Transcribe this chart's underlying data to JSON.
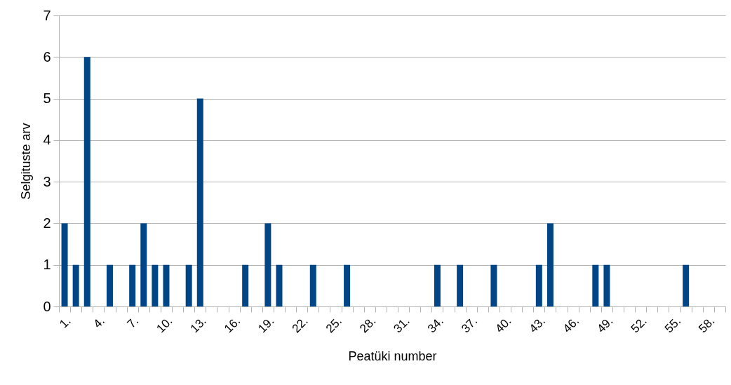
{
  "chart_data": {
    "type": "bar",
    "xlabel": "Peatüki number",
    "ylabel": "Selgituste arv",
    "categories": [
      "1.",
      null,
      null,
      "4.",
      null,
      null,
      "7.",
      null,
      null,
      "10.",
      null,
      null,
      "13.",
      null,
      null,
      "16.",
      null,
      null,
      "19.",
      null,
      null,
      "22.",
      null,
      null,
      "25.",
      null,
      null,
      "28.",
      null,
      null,
      "31.",
      null,
      null,
      "34.",
      null,
      null,
      "37.",
      null,
      null,
      "40.",
      null,
      null,
      "43.",
      null,
      null,
      "46.",
      null,
      null,
      "49.",
      null,
      null,
      "52.",
      null,
      null,
      "55.",
      null,
      null,
      "58.",
      null
    ],
    "values": [
      2,
      1,
      6,
      0,
      1,
      0,
      1,
      2,
      1,
      1,
      0,
      1,
      5,
      0,
      0,
      0,
      1,
      0,
      2,
      1,
      0,
      0,
      1,
      0,
      0,
      1,
      0,
      0,
      0,
      0,
      0,
      0,
      0,
      1,
      0,
      1,
      0,
      0,
      1,
      0,
      0,
      0,
      1,
      2,
      0,
      0,
      0,
      1,
      1,
      0,
      0,
      0,
      0,
      0,
      0,
      1,
      0,
      0,
      0
    ],
    "color": "#004586",
    "ylim": [
      0,
      7
    ],
    "yticks": [
      0,
      1,
      2,
      3,
      4,
      5,
      6,
      7
    ],
    "grid": "y"
  }
}
